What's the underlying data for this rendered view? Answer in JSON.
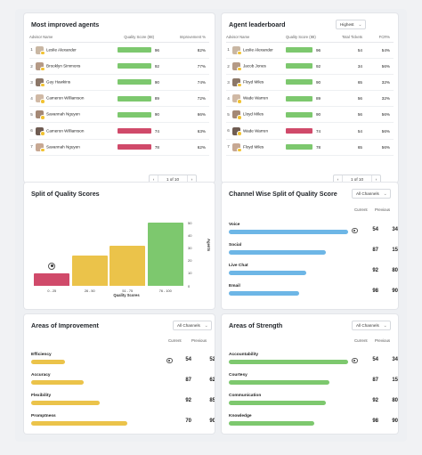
{
  "colors": {
    "green": "#7dc86e",
    "red": "#d04a6a",
    "yellow": "#ebc34a",
    "blue": "#6db6e6",
    "purple_avatar": "#9b89c9"
  },
  "improved": {
    "title": "Most improved agents",
    "columns": [
      "Advisor Name",
      "Quality Score (88)",
      "Improvement %"
    ],
    "rows": [
      {
        "rank": "1",
        "name": "Leslie Alexander",
        "score": 96,
        "improvement": "82%",
        "status": "green"
      },
      {
        "rank": "2",
        "name": "Brooklyn Simmons",
        "score": 92,
        "improvement": "77%",
        "status": "green"
      },
      {
        "rank": "3",
        "name": "Guy Hawkins",
        "score": 90,
        "improvement": "74%",
        "status": "green"
      },
      {
        "rank": "4",
        "name": "Cameron Williamson",
        "score": 89,
        "improvement": "72%",
        "status": "green"
      },
      {
        "rank": "5",
        "name": "Savannah Nguyen",
        "score": 90,
        "improvement": "66%",
        "status": "green"
      },
      {
        "rank": "6",
        "name": "Cameron Williamson",
        "score": 74,
        "improvement": "63%",
        "status": "red"
      },
      {
        "rank": "7",
        "name": "Savannah Nguyen",
        "score": 78,
        "improvement": "62%",
        "status": "red"
      }
    ],
    "pager": "1 of 10"
  },
  "leaderboard": {
    "title": "Agent leaderboard",
    "dropdown": "Highest",
    "columns": [
      "Advisor Name",
      "Quality Score (88)",
      "Total Tickets",
      "FCR%"
    ],
    "rows": [
      {
        "rank": "1",
        "name": "Leslie Alexander",
        "score": 96,
        "tickets": "54",
        "fcr": "54%",
        "status": "green"
      },
      {
        "rank": "2",
        "name": "Jacob Jones",
        "score": 92,
        "tickets": "34",
        "fcr": "56%",
        "status": "green"
      },
      {
        "rank": "3",
        "name": "Floyd Miles",
        "score": 90,
        "tickets": "65",
        "fcr": "32%",
        "status": "green"
      },
      {
        "rank": "4",
        "name": "Wade Warren",
        "score": 89,
        "tickets": "56",
        "fcr": "32%",
        "status": "green"
      },
      {
        "rank": "5",
        "name": "Lloyd Miles",
        "score": 90,
        "tickets": "56",
        "fcr": "56%",
        "status": "green"
      },
      {
        "rank": "6",
        "name": "Wade Warren",
        "score": 74,
        "tickets": "54",
        "fcr": "56%",
        "status": "red"
      },
      {
        "rank": "7",
        "name": "Floyd Miles",
        "score": 78,
        "tickets": "65",
        "fcr": "56%",
        "status": "green"
      }
    ],
    "pager": "1 of 10"
  },
  "split": {
    "title": "Split of Quality Scores",
    "xlabel": "Quality Scores",
    "ylabel": "Agents"
  },
  "chart_data": {
    "type": "bar",
    "title": "Split of Quality Scores",
    "xlabel": "Quality Scores",
    "ylabel": "Agents",
    "categories": [
      "0 - 25",
      "26 - 50",
      "51 - 75",
      "76 - 100"
    ],
    "values": [
      10,
      24,
      32,
      50
    ],
    "colors": [
      "#d04a6a",
      "#ebc34a",
      "#ebc34a",
      "#7dc86e"
    ],
    "yticks": [
      0,
      10,
      20,
      30,
      40,
      50
    ],
    "ylim": [
      0,
      55
    ],
    "grid": false,
    "marker_category": "0 - 25"
  },
  "channel": {
    "title": "Channel Wise Split of Quality Score",
    "dropdown": "All Channels",
    "current_label": "Current",
    "previous_label": "Previous",
    "rows": [
      {
        "label": "Voice",
        "current": 54,
        "previous": 34,
        "pct": 1.0,
        "pin": true
      },
      {
        "label": "Social",
        "current": 87,
        "previous": 15,
        "pct": 0.81,
        "pin": false
      },
      {
        "label": "Live Chat",
        "current": 92,
        "previous": 80,
        "pct": 0.65,
        "pin": false
      },
      {
        "label": "Email",
        "current": 98,
        "previous": 90,
        "pct": 0.59,
        "pin": false
      }
    ]
  },
  "improvement_areas": {
    "title": "Areas of Improvement",
    "dropdown": "All Channels",
    "current_label": "Current",
    "previous_label": "Previous",
    "rows": [
      {
        "label": "Efficiency",
        "current": 54,
        "previous": 52,
        "pct": 0.29,
        "pin": true
      },
      {
        "label": "Accuracy",
        "current": 87,
        "previous": 62,
        "pct": 0.45,
        "pin": false
      },
      {
        "label": "Flexibility",
        "current": 92,
        "previous": 85,
        "pct": 0.58,
        "pin": false
      },
      {
        "label": "Promptness",
        "current": 70,
        "previous": 90,
        "pct": 0.82,
        "pin": false
      }
    ]
  },
  "strength_areas": {
    "title": "Areas of Strength",
    "dropdown": "All Channels",
    "current_label": "Current",
    "previous_label": "Previous",
    "rows": [
      {
        "label": "Accountability",
        "current": 54,
        "previous": 34,
        "pct": 1.0,
        "pin": true
      },
      {
        "label": "Courtesy",
        "current": 87,
        "previous": 15,
        "pct": 0.84,
        "pin": false
      },
      {
        "label": "Communication",
        "current": 92,
        "previous": 80,
        "pct": 0.81,
        "pin": false
      },
      {
        "label": "Knowledge",
        "current": 98,
        "previous": 90,
        "pct": 0.72,
        "pin": false
      }
    ]
  }
}
